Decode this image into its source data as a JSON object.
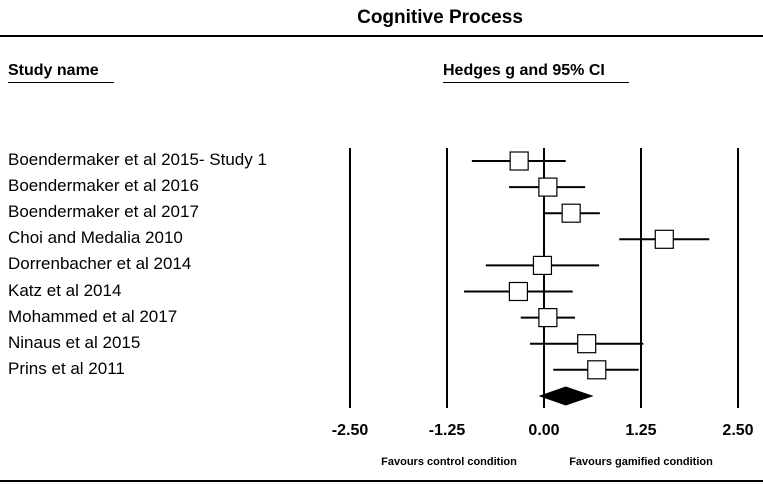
{
  "chart_data": {
    "type": "forest",
    "title": "Cognitive Process",
    "column_headers": {
      "study": "Study name",
      "effect": "Hedges g and 95% CI"
    },
    "x_axis": {
      "ticks": [
        -2.5,
        -1.25,
        0.0,
        1.25,
        2.5
      ],
      "tick_labels": [
        "-2.50",
        "-1.25",
        "0.00",
        "1.25",
        "2.50"
      ],
      "range": [
        -2.5,
        2.5
      ]
    },
    "favours": {
      "left": "Favours control condition",
      "right": "Favours gamified condition"
    },
    "studies": [
      {
        "name": "Boendermaker et al 2015- Study 1",
        "g": -0.32,
        "lower": -0.93,
        "upper": 0.28
      },
      {
        "name": "Boendermaker et al 2016",
        "g": 0.05,
        "lower": -0.45,
        "upper": 0.53
      },
      {
        "name": "Boendermaker et al 2017",
        "g": 0.35,
        "lower": 0.0,
        "upper": 0.72
      },
      {
        "name": "Choi and Medalia 2010",
        "g": 1.55,
        "lower": 0.97,
        "upper": 2.13
      },
      {
        "name": "Dorrenbacher et al 2014",
        "g": -0.02,
        "lower": -0.75,
        "upper": 0.71
      },
      {
        "name": "Katz et al 2014",
        "g": -0.33,
        "lower": -1.03,
        "upper": 0.37
      },
      {
        "name": "Mohammed et al 2017",
        "g": 0.05,
        "lower": -0.3,
        "upper": 0.4
      },
      {
        "name": "Ninaus et al 2015",
        "g": 0.55,
        "lower": -0.18,
        "upper": 1.28
      },
      {
        "name": "Prins et al 2011",
        "g": 0.68,
        "lower": 0.12,
        "upper": 1.22
      }
    ],
    "summary": {
      "g": 0.28,
      "lower": -0.05,
      "upper": 0.62
    },
    "colors": {
      "line": "#000000",
      "marker_fill": "#ffffff",
      "diamond_fill": "#000000"
    }
  }
}
